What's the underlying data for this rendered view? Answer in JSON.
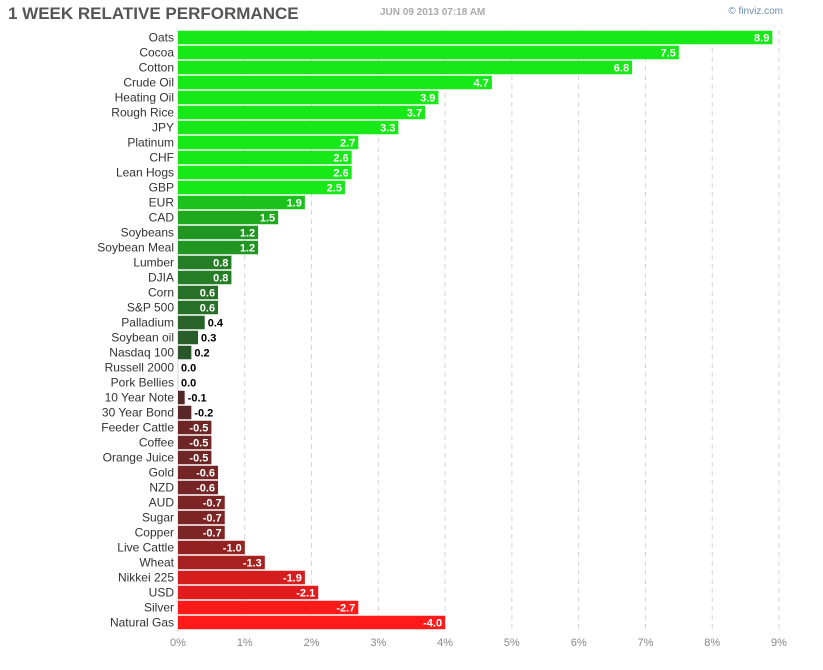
{
  "header": {
    "title": "1 WEEK RELATIVE PERFORMANCE",
    "timestamp": "JUN 09 2013 07:18 AM",
    "brand": "© finviz.com"
  },
  "chart_data": {
    "type": "bar",
    "orientation": "horizontal",
    "title": "1 WEEK RELATIVE PERFORMANCE",
    "xlim": [
      0,
      9
    ],
    "grid": true,
    "x_ticks": [
      "0%",
      "1%",
      "2%",
      "3%",
      "4%",
      "5%",
      "6%",
      "7%",
      "8%",
      "9%"
    ],
    "categories": [
      "Oats",
      "Cocoa",
      "Cotton",
      "Crude Oil",
      "Heating Oil",
      "Rough Rice",
      "JPY",
      "Platinum",
      "CHF",
      "Lean Hogs",
      "GBP",
      "EUR",
      "CAD",
      "Soybeans",
      "Soybean Meal",
      "Lumber",
      "DJIA",
      "Corn",
      "S&P 500",
      "Palladium",
      "Soybean oil",
      "Nasdaq 100",
      "Russell 2000",
      "Pork Bellies",
      "10 Year Note",
      "30 Year Bond",
      "Feeder Cattle",
      "Coffee",
      "Orange Juice",
      "Gold",
      "NZD",
      "AUD",
      "Sugar",
      "Copper",
      "Live Cattle",
      "Wheat",
      "Nikkei 225",
      "USD",
      "Silver",
      "Natural Gas"
    ],
    "values": [
      8.9,
      7.5,
      6.8,
      4.7,
      3.9,
      3.7,
      3.3,
      2.7,
      2.6,
      2.6,
      2.5,
      1.9,
      1.5,
      1.2,
      1.2,
      0.8,
      0.8,
      0.6,
      0.6,
      0.4,
      0.3,
      0.2,
      0.0,
      0.0,
      -0.1,
      -0.2,
      -0.5,
      -0.5,
      -0.5,
      -0.6,
      -0.6,
      -0.7,
      -0.7,
      -0.7,
      -1.0,
      -1.3,
      -1.9,
      -2.1,
      -2.7,
      -4.0
    ],
    "value_labels": [
      "8.9",
      "7.5",
      "6.8",
      "4.7",
      "3.9",
      "3.7",
      "3.3",
      "2.7",
      "2.6",
      "2.6",
      "2.5",
      "1.9",
      "1.5",
      "1.2",
      "1.2",
      "0.8",
      "0.8",
      "0.6",
      "0.6",
      "0.4",
      "0.3",
      "0.2",
      "0.0",
      "0.0",
      "-0.1",
      "-0.2",
      "-0.5",
      "-0.5",
      "-0.5",
      "-0.6",
      "-0.6",
      "-0.7",
      "-0.7",
      "-0.7",
      "-1.0",
      "-1.3",
      "-1.9",
      "-2.1",
      "-2.7",
      "-4.0"
    ],
    "colors": {
      "positive_strong": "#17e817",
      "positive_weak": "#2c4a2c",
      "negative_strong": "#ff1a1a",
      "negative_weak": "#4a2828",
      "grid": "#d4d4d4"
    }
  }
}
